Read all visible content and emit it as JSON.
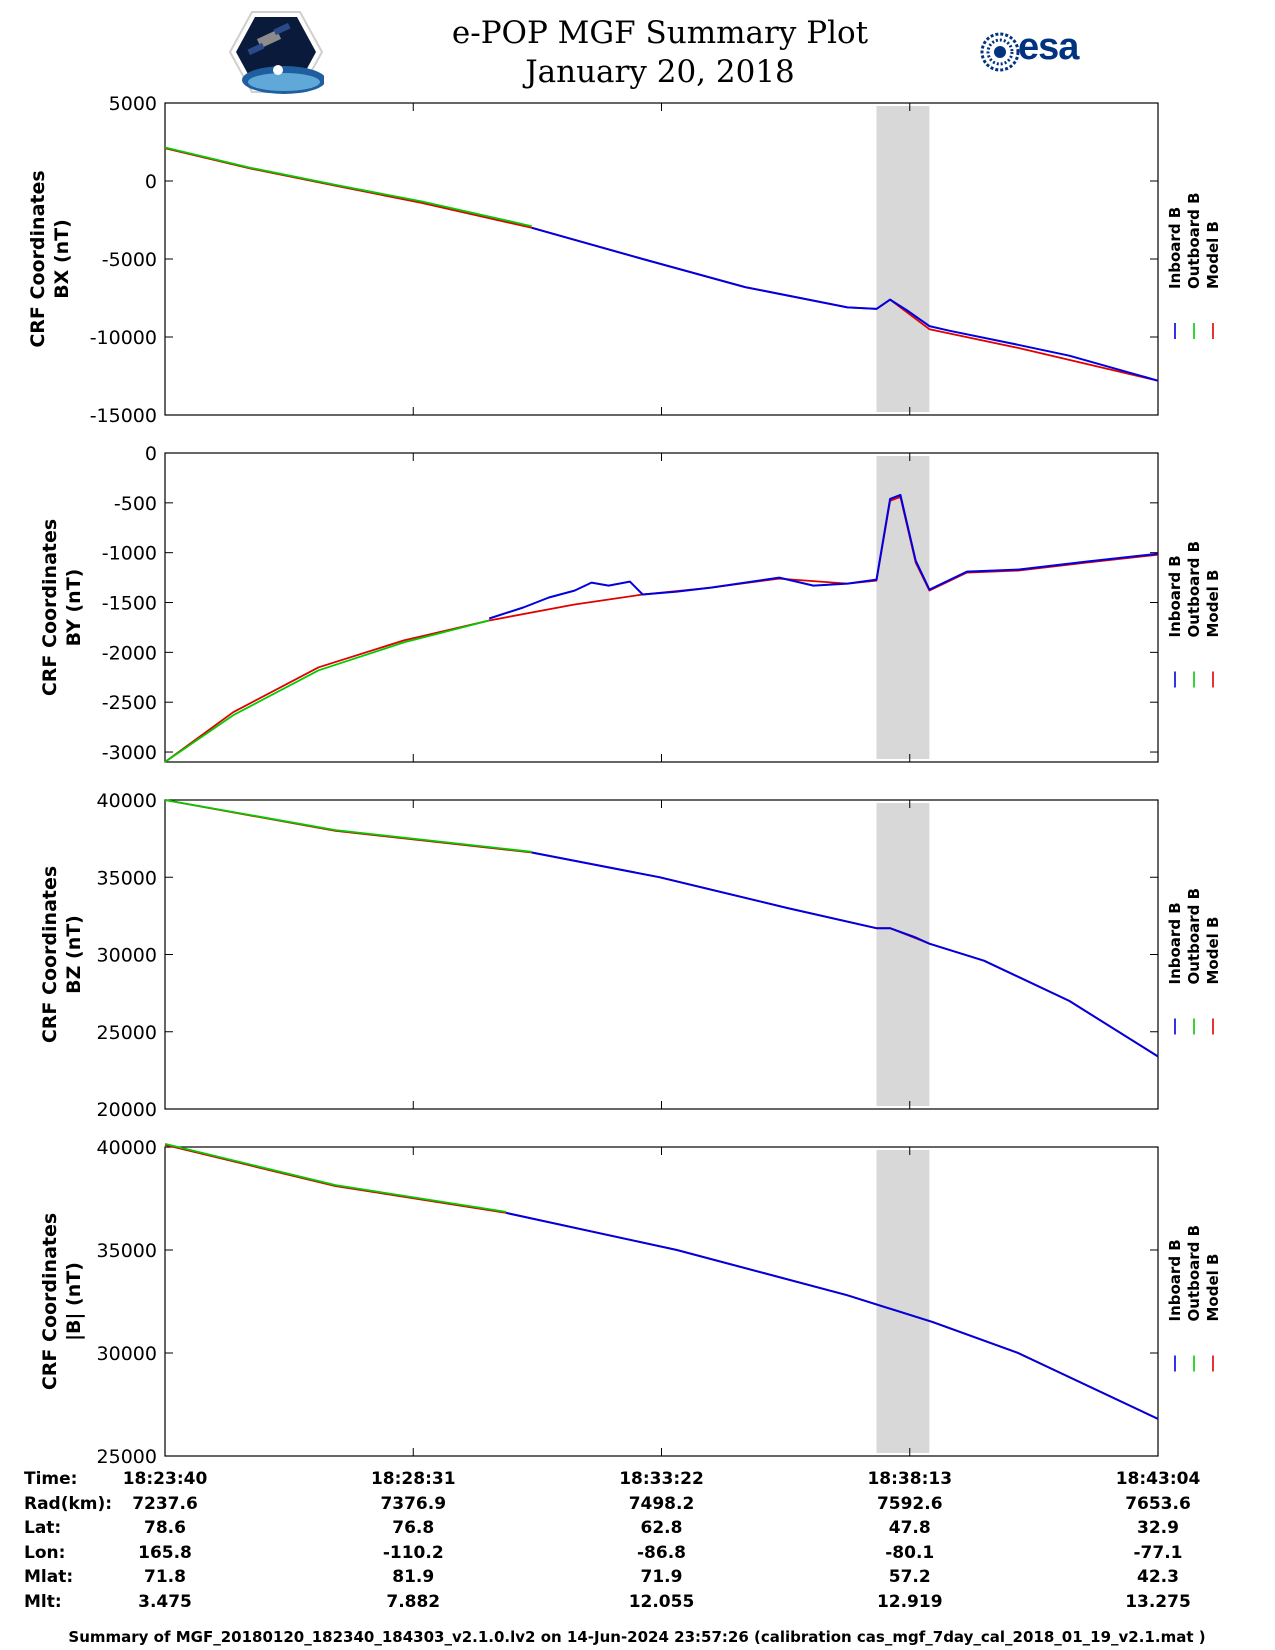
{
  "header": {
    "title_line1": "e-POP MGF Summary Plot",
    "title_line2": "January 20, 2018",
    "left_logo": "cassiope-mission-logo",
    "right_logo": "esa-logo",
    "right_logo_text": "esa"
  },
  "colors": {
    "inboard": "#0000e0",
    "outboard": "#00cc00",
    "model": "#e00000",
    "shade": "#d8d8d8"
  },
  "chart_data": [
    {
      "type": "line",
      "ylabel": [
        "CRF Coordinates",
        "BX (nT)"
      ],
      "ylim": [
        -15000,
        5000
      ],
      "yticks": [
        "5000",
        "0",
        "-5000",
        "-10000",
        "-15000"
      ],
      "legend": [
        "Inboard B",
        "Outboard B",
        "Model B"
      ],
      "x_range_sec": [
        0,
        1164
      ],
      "shaded_interval_sec": [
        834,
        896
      ],
      "series": [
        {
          "name": "Model B",
          "x": [
            0,
            100,
            200,
            300,
            430,
            560,
            680,
            800,
            834,
            850,
            896,
            1000,
            1164
          ],
          "values": [
            2100,
            800,
            -300,
            -1400,
            -3000,
            -5000,
            -6800,
            -8100,
            -8200,
            -7600,
            -9500,
            -10700,
            -12800
          ]
        },
        {
          "name": "Outboard B",
          "x": [
            0,
            100,
            200,
            300,
            430
          ],
          "values": [
            2150,
            850,
            -250,
            -1300,
            -2900
          ]
        },
        {
          "name": "Inboard B",
          "x": [
            430,
            560,
            680,
            800,
            834,
            850,
            870,
            896,
            920,
            1000,
            1060,
            1164
          ],
          "values": [
            -3000,
            -5000,
            -6800,
            -8100,
            -8200,
            -7600,
            -8300,
            -9300,
            -9600,
            -10500,
            -11200,
            -12800
          ]
        }
      ]
    },
    {
      "type": "line",
      "ylabel": [
        "CRF Coordinates",
        "BY (nT)"
      ],
      "ylim": [
        -3100,
        0
      ],
      "yticks": [
        "0",
        "-500",
        "-1000",
        "-1500",
        "-2000",
        "-2500",
        "-3000"
      ],
      "legend": [
        "Inboard B",
        "Outboard B",
        "Model B"
      ],
      "x_range_sec": [
        0,
        1164
      ],
      "shaded_interval_sec": [
        834,
        896
      ],
      "series": [
        {
          "name": "Model B",
          "x": [
            0,
            80,
            180,
            280,
            380,
            480,
            560,
            640,
            720,
            800,
            834,
            850,
            862,
            880,
            896,
            940,
            1000,
            1080,
            1164
          ],
          "values": [
            -3100,
            -2600,
            -2150,
            -1880,
            -1680,
            -1520,
            -1420,
            -1350,
            -1260,
            -1310,
            -1280,
            -480,
            -440,
            -1100,
            -1380,
            -1200,
            -1180,
            -1100,
            -1020
          ]
        },
        {
          "name": "Outboard B",
          "x": [
            0,
            80,
            180,
            280,
            380
          ],
          "values": [
            -3100,
            -2630,
            -2180,
            -1900,
            -1680
          ]
        },
        {
          "name": "Inboard B",
          "x": [
            380,
            420,
            450,
            480,
            500,
            520,
            545,
            560,
            600,
            640,
            720,
            760,
            800,
            834,
            850,
            862,
            880,
            896,
            940,
            1000,
            1080,
            1164
          ],
          "values": [
            -1660,
            -1550,
            -1450,
            -1380,
            -1300,
            -1330,
            -1290,
            -1420,
            -1390,
            -1350,
            -1250,
            -1330,
            -1310,
            -1270,
            -460,
            -420,
            -1080,
            -1370,
            -1190,
            -1170,
            -1090,
            -1010
          ]
        }
      ]
    },
    {
      "type": "line",
      "ylabel": [
        "CRF Coordinates",
        "BZ (nT)"
      ],
      "ylim": [
        20000,
        40000
      ],
      "yticks": [
        "40000",
        "35000",
        "30000",
        "25000",
        "20000"
      ],
      "legend": [
        "Inboard B",
        "Outboard B",
        "Model B"
      ],
      "x_range_sec": [
        0,
        1164
      ],
      "shaded_interval_sec": [
        834,
        896
      ],
      "series": [
        {
          "name": "Model B",
          "x": [
            0,
            200,
            430,
            580,
            730,
            834,
            850,
            896,
            960,
            1060,
            1164
          ],
          "values": [
            40000,
            38000,
            36600,
            35000,
            33000,
            31700,
            31700,
            30700,
            29600,
            27000,
            23400
          ]
        },
        {
          "name": "Outboard B",
          "x": [
            0,
            200,
            430
          ],
          "values": [
            40000,
            38050,
            36650
          ]
        },
        {
          "name": "Inboard B",
          "x": [
            430,
            580,
            730,
            834,
            850,
            880,
            896,
            960,
            1060,
            1164
          ],
          "values": [
            36600,
            35000,
            33000,
            31700,
            31700,
            31100,
            30700,
            29600,
            27000,
            23400
          ]
        }
      ]
    },
    {
      "type": "line",
      "ylabel": [
        "CRF Coordinates",
        "|B| (nT)"
      ],
      "ylim": [
        25000,
        40000
      ],
      "yticks": [
        "40000",
        "35000",
        "30000",
        "25000"
      ],
      "legend": [
        "Inboard B",
        "Outboard B",
        "Model B"
      ],
      "x_range_sec": [
        0,
        1164
      ],
      "shaded_interval_sec": [
        834,
        896
      ],
      "series": [
        {
          "name": "Model B",
          "x": [
            0,
            200,
            400,
            600,
            800,
            900,
            1000,
            1164
          ],
          "values": [
            40100,
            38100,
            36800,
            35000,
            32800,
            31500,
            30000,
            26800
          ]
        },
        {
          "name": "Outboard B",
          "x": [
            0,
            200,
            400
          ],
          "values": [
            40150,
            38150,
            36850
          ]
        },
        {
          "name": "Inboard B",
          "x": [
            400,
            600,
            800,
            900,
            1000,
            1164
          ],
          "values": [
            36800,
            35000,
            32800,
            31500,
            30000,
            26800
          ]
        }
      ]
    }
  ],
  "x_axis": {
    "tick_seconds": [
      0,
      291,
      582,
      873,
      1164
    ]
  },
  "ephemeris": {
    "labels": [
      "Time:",
      "Rad(km):",
      "Lat:",
      "Lon:",
      "Mlat:",
      "Mlt:"
    ],
    "columns": [
      [
        "18:23:40",
        "7237.6",
        "78.6",
        "165.8",
        "71.8",
        "3.475"
      ],
      [
        "18:28:31",
        "7376.9",
        "76.8",
        "-110.2",
        "81.9",
        "7.882"
      ],
      [
        "18:33:22",
        "7498.2",
        "62.8",
        "-86.8",
        "71.9",
        "12.055"
      ],
      [
        "18:38:13",
        "7592.6",
        "47.8",
        "-80.1",
        "57.2",
        "12.919"
      ],
      [
        "18:43:04",
        "7653.6",
        "32.9",
        "-77.1",
        "42.3",
        "13.275"
      ]
    ]
  },
  "footer": "Summary of MGF_20180120_182340_184303_v2.1.0.lv2 on 14-Jun-2024 23:57:26 (calibration cas_mgf_7day_cal_2018_01_19_v2.1.mat )"
}
